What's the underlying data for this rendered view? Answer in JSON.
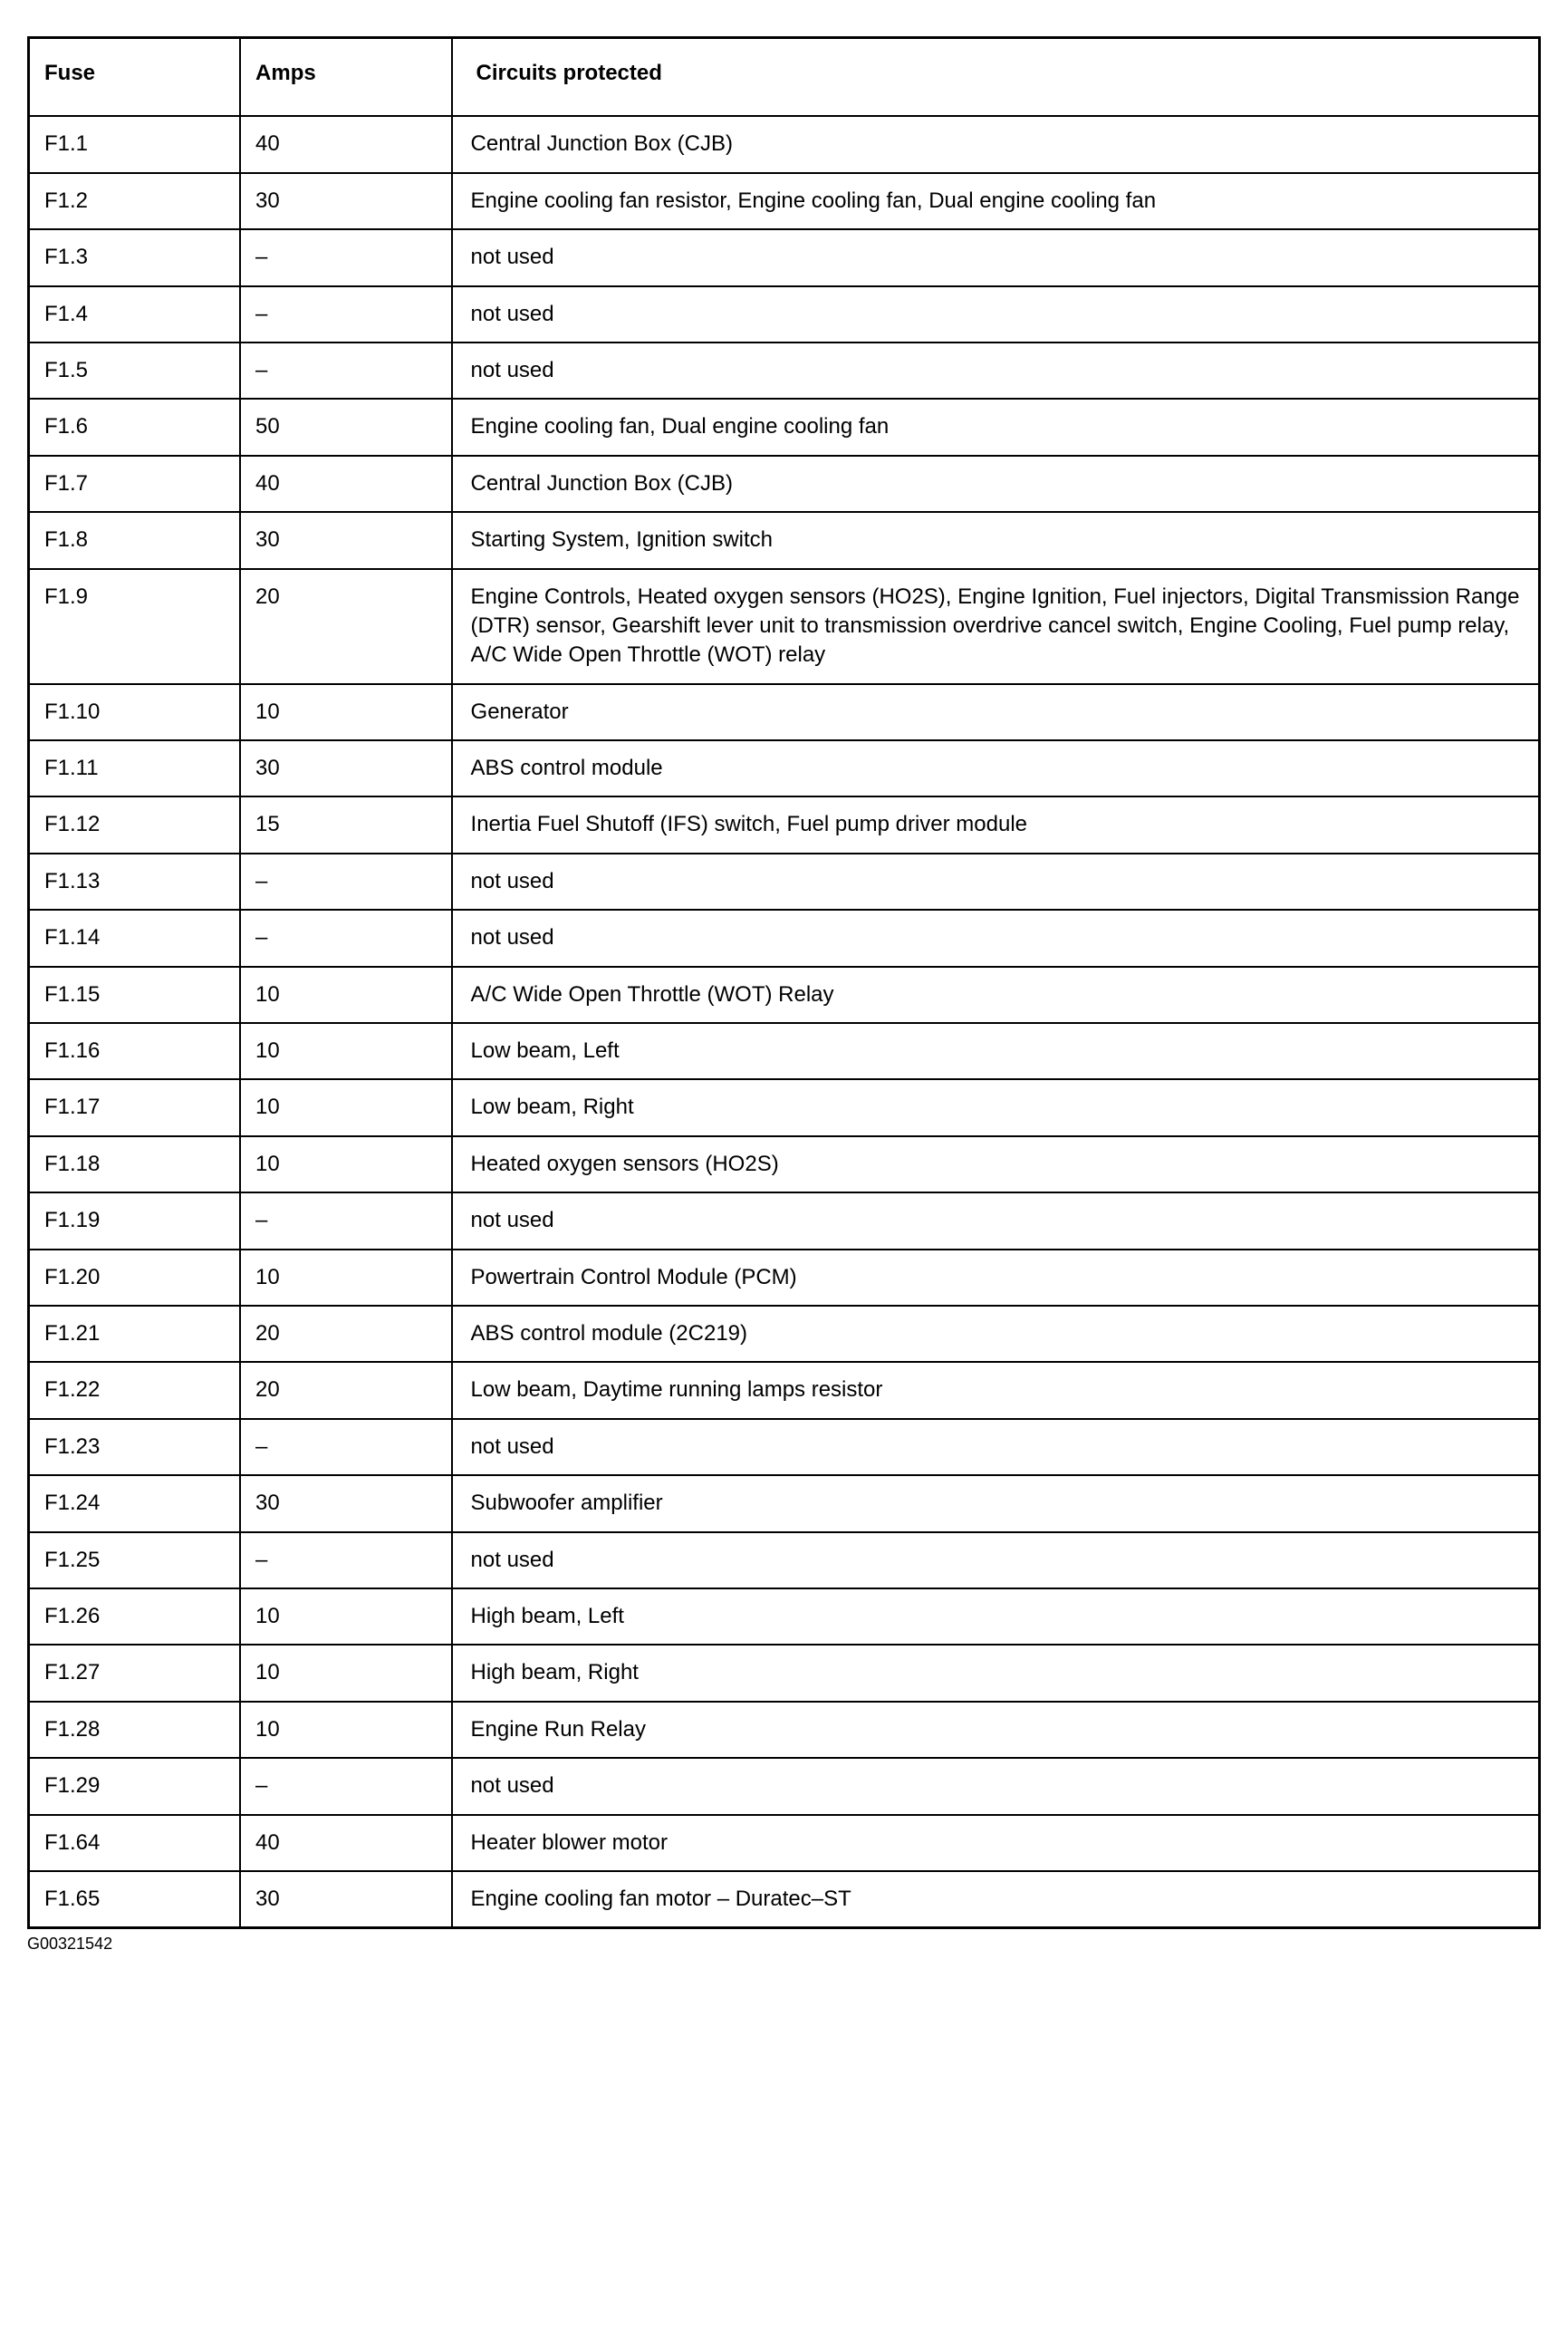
{
  "table": {
    "columns": [
      "Fuse",
      "Amps",
      "Circuits protected"
    ],
    "rows": [
      {
        "fuse": "F1.1",
        "amps": "40",
        "circ": "Central Junction Box (CJB)"
      },
      {
        "fuse": "F1.2",
        "amps": "30",
        "circ": "Engine cooling fan resistor, Engine cooling fan, Dual engine cooling fan"
      },
      {
        "fuse": "F1.3",
        "amps": "–",
        "circ": "not used"
      },
      {
        "fuse": "F1.4",
        "amps": "–",
        "circ": "not used"
      },
      {
        "fuse": "F1.5",
        "amps": "–",
        "circ": "not used"
      },
      {
        "fuse": "F1.6",
        "amps": "50",
        "circ": "Engine cooling fan, Dual engine cooling fan"
      },
      {
        "fuse": "F1.7",
        "amps": "40",
        "circ": "Central Junction Box (CJB)"
      },
      {
        "fuse": "F1.8",
        "amps": "30",
        "circ": "Starting System, Ignition switch"
      },
      {
        "fuse": "F1.9",
        "amps": "20",
        "circ": "Engine Controls, Heated oxygen sensors (HO2S), Engine Ignition, Fuel injectors, Digital Transmission Range (DTR) sensor, Gearshift lever unit to transmission overdrive cancel switch, Engine Cooling, Fuel pump relay, A/C Wide Open Throttle (WOT) relay"
      },
      {
        "fuse": "F1.10",
        "amps": "10",
        "circ": "Generator"
      },
      {
        "fuse": "F1.11",
        "amps": "30",
        "circ": "ABS control module"
      },
      {
        "fuse": "F1.12",
        "amps": "15",
        "circ": "Inertia Fuel Shutoff (IFS) switch, Fuel pump driver module"
      },
      {
        "fuse": "F1.13",
        "amps": "–",
        "circ": "not used"
      },
      {
        "fuse": "F1.14",
        "amps": "–",
        "circ": "not used"
      },
      {
        "fuse": "F1.15",
        "amps": "10",
        "circ": "A/C Wide Open Throttle (WOT) Relay"
      },
      {
        "fuse": "F1.16",
        "amps": "10",
        "circ": "Low beam, Left"
      },
      {
        "fuse": "F1.17",
        "amps": "10",
        "circ": "Low beam, Right"
      },
      {
        "fuse": "F1.18",
        "amps": "10",
        "circ": "Heated oxygen sensors (HO2S)"
      },
      {
        "fuse": "F1.19",
        "amps": "–",
        "circ": "not used"
      },
      {
        "fuse": "F1.20",
        "amps": "10",
        "circ": "Powertrain Control Module (PCM)"
      },
      {
        "fuse": "F1.21",
        "amps": "20",
        "circ": "ABS control module (2C219)"
      },
      {
        "fuse": "F1.22",
        "amps": "20",
        "circ": "Low beam, Daytime running lamps resistor"
      },
      {
        "fuse": "F1.23",
        "amps": "–",
        "circ": "not used"
      },
      {
        "fuse": "F1.24",
        "amps": "30",
        "circ": "Subwoofer amplifier"
      },
      {
        "fuse": "F1.25",
        "amps": "–",
        "circ": "not used"
      },
      {
        "fuse": "F1.26",
        "amps": "10",
        "circ": "High beam, Left"
      },
      {
        "fuse": "F1.27",
        "amps": "10",
        "circ": "High beam, Right"
      },
      {
        "fuse": "F1.28",
        "amps": "10",
        "circ": "Engine Run Relay"
      },
      {
        "fuse": "F1.29",
        "amps": "–",
        "circ": "not used"
      },
      {
        "fuse": "F1.64",
        "amps": "40",
        "circ": "Heater blower motor"
      },
      {
        "fuse": "F1.65",
        "amps": "30",
        "circ": "Engine cooling fan motor – Duratec–ST"
      }
    ],
    "border_color": "#000000",
    "background_color": "#ffffff",
    "text_color": "#000000",
    "header_fontsize": 24,
    "cell_fontsize": 24,
    "column_widths_pct": [
      14,
      14,
      72
    ]
  },
  "footer_id": "G00321542"
}
